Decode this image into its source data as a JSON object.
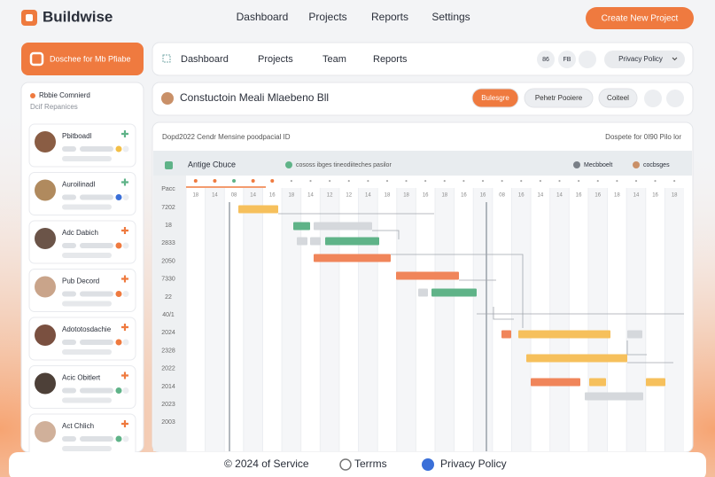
{
  "header": {
    "logo": "Buildwise",
    "nav": [
      "Dashboard",
      "Projects",
      "Reports",
      "Settings"
    ],
    "cta": "Create New Project"
  },
  "sidebar": {
    "button": "Doschee for Mb Pfiabe",
    "heading": "Rbbie Comnierd",
    "subheading": "Dcif Repanices",
    "people": [
      {
        "name": "Pbitboadl"
      },
      {
        "name": "Auroilinadl"
      },
      {
        "name": "Adc Dabich"
      },
      {
        "name": "Pub Decord"
      },
      {
        "name": "Adototosdachie"
      },
      {
        "name": "Acic Obitlert"
      },
      {
        "name": "Act Chlich"
      }
    ]
  },
  "subnav": {
    "items": [
      "Dashboard",
      "Projects",
      "Team",
      "Reports"
    ],
    "icons": [
      "86",
      "FB"
    ],
    "dropdown": "Privacy Policy"
  },
  "project": {
    "title": "Constuctoin Meali Mlaebeno Bll",
    "buttons": [
      "Bulesgre",
      "Pehetr Pooiere",
      "Coiteel"
    ]
  },
  "gantt": {
    "title": "Dopd2022 Cendr Mensine poodpacial ID",
    "meta": "Dospete for 0I90 Pilo lor",
    "toolbar": {
      "label": "Antige Cbuce",
      "filter": "cososs ibges tineodiiteches pasilor",
      "legend": [
        "Mecbboelt",
        "cocbsges"
      ]
    },
    "days": [
      "18",
      "14",
      "08",
      "14",
      "16",
      "18",
      "14",
      "12",
      "12",
      "14",
      "18",
      "18",
      "16",
      "18",
      "16",
      "16",
      "08",
      "16",
      "14",
      "14",
      "16",
      "16",
      "18",
      "14",
      "16",
      "18"
    ],
    "rows": [
      "Pacc",
      "7202",
      "18",
      "2833",
      "2050",
      "7330",
      "22",
      "40/1",
      "2024",
      "2328",
      "2022",
      "2014",
      "2023",
      "2003"
    ]
  },
  "footer": {
    "items": [
      "© 2024 of Service",
      "Terrms",
      "Privacy Policy"
    ]
  }
}
